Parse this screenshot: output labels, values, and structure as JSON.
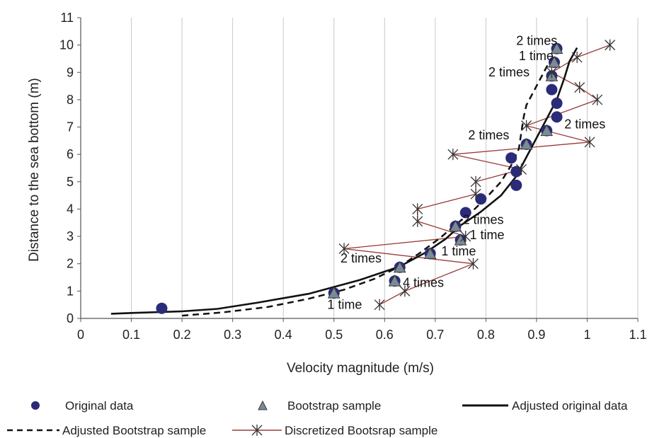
{
  "chart_data": {
    "type": "scatter",
    "title": "",
    "xlabel": "Velocity magnitude (m/s)",
    "ylabel": "Distance to the sea bottom (m)",
    "xlim": [
      0,
      1.1
    ],
    "ylim": [
      0,
      11
    ],
    "xticks": [
      "0",
      "0.1",
      "0.2",
      "0.3",
      "0.4",
      "0.5",
      "0.6",
      "0.7",
      "0.8",
      "0.9",
      "1",
      "1.1"
    ],
    "yticks": [
      "0",
      "1",
      "2",
      "3",
      "4",
      "5",
      "6",
      "7",
      "8",
      "9",
      "10",
      "11"
    ],
    "grid": "vertical",
    "legend_position": "bottom",
    "colors": {
      "original": "#2b2b7a",
      "bootstrap_fill": "#7a8a96",
      "bootstrap_edge": "#3a3a3a",
      "adjusted_original": "#111111",
      "adjusted_bootstrap": "#111111",
      "discretized": "#9a3a3a",
      "grid": "#c8c8c8"
    },
    "series": [
      {
        "name": "Original data",
        "kind": "points",
        "marker": "circle",
        "points": [
          [
            0.16,
            0.37
          ],
          [
            0.5,
            0.93
          ],
          [
            0.62,
            1.37
          ],
          [
            0.63,
            1.87
          ],
          [
            0.69,
            2.37
          ],
          [
            0.75,
            2.87
          ],
          [
            0.74,
            3.37
          ],
          [
            0.76,
            3.87
          ],
          [
            0.79,
            4.37
          ],
          [
            0.86,
            4.87
          ],
          [
            0.86,
            5.37
          ],
          [
            0.85,
            5.87
          ],
          [
            0.88,
            6.37
          ],
          [
            0.92,
            6.87
          ],
          [
            0.94,
            7.37
          ],
          [
            0.94,
            7.87
          ],
          [
            0.93,
            8.37
          ],
          [
            0.93,
            8.87
          ],
          [
            0.935,
            9.37
          ],
          [
            0.94,
            9.87
          ]
        ]
      },
      {
        "name": "Bootstrap sample",
        "kind": "points",
        "marker": "triangle",
        "points": [
          [
            0.5,
            0.93
          ],
          [
            0.62,
            1.37
          ],
          [
            0.63,
            1.87
          ],
          [
            0.69,
            2.37
          ],
          [
            0.75,
            2.87
          ],
          [
            0.74,
            3.37
          ],
          [
            0.88,
            6.37
          ],
          [
            0.92,
            6.87
          ],
          [
            0.93,
            8.87
          ],
          [
            0.935,
            9.37
          ],
          [
            0.94,
            9.87
          ]
        ]
      },
      {
        "name": "Adjusted original data",
        "kind": "line",
        "dash": "solid",
        "points": [
          [
            0.06,
            0.17
          ],
          [
            0.1,
            0.2
          ],
          [
            0.2,
            0.26
          ],
          [
            0.27,
            0.35
          ],
          [
            0.35,
            0.58
          ],
          [
            0.45,
            0.9
          ],
          [
            0.55,
            1.4
          ],
          [
            0.63,
            1.9
          ],
          [
            0.68,
            2.4
          ],
          [
            0.72,
            2.9
          ],
          [
            0.75,
            3.4
          ],
          [
            0.79,
            3.9
          ],
          [
            0.83,
            4.5
          ],
          [
            0.86,
            5.2
          ],
          [
            0.88,
            5.9
          ],
          [
            0.9,
            6.6
          ],
          [
            0.92,
            7.3
          ],
          [
            0.94,
            8.0
          ],
          [
            0.955,
            8.8
          ],
          [
            0.965,
            9.4
          ],
          [
            0.98,
            9.9
          ]
        ]
      },
      {
        "name": "Adjusted Bootstrap sample",
        "kind": "line",
        "dash": "dashed",
        "points": [
          [
            0.2,
            0.1
          ],
          [
            0.28,
            0.22
          ],
          [
            0.37,
            0.42
          ],
          [
            0.45,
            0.72
          ],
          [
            0.52,
            1.05
          ],
          [
            0.58,
            1.45
          ],
          [
            0.63,
            1.9
          ],
          [
            0.67,
            2.4
          ],
          [
            0.71,
            2.95
          ],
          [
            0.745,
            3.5
          ],
          [
            0.775,
            3.95
          ],
          [
            0.8,
            4.4
          ],
          [
            0.83,
            5.0
          ],
          [
            0.85,
            5.6
          ],
          [
            0.865,
            6.2
          ],
          [
            0.87,
            6.8
          ],
          [
            0.875,
            7.4
          ],
          [
            0.88,
            7.8
          ],
          [
            0.9,
            8.5
          ],
          [
            0.92,
            9.2
          ],
          [
            0.94,
            9.8
          ]
        ]
      },
      {
        "name": "Discretized Bootsrap sample",
        "kind": "line-markers",
        "marker": "asterisk",
        "points": [
          [
            0.59,
            0.5
          ],
          [
            0.64,
            1.0
          ],
          [
            0.775,
            2.0
          ],
          [
            0.52,
            2.55
          ],
          [
            0.76,
            3.0
          ],
          [
            0.665,
            3.55
          ],
          [
            0.665,
            4.0
          ],
          [
            0.78,
            4.55
          ],
          [
            0.78,
            5.0
          ],
          [
            0.87,
            5.45
          ],
          [
            0.735,
            6.0
          ],
          [
            1.005,
            6.45
          ],
          [
            0.88,
            7.05
          ],
          [
            1.02,
            8.0
          ],
          [
            0.985,
            8.45
          ],
          [
            0.93,
            9.0
          ],
          [
            0.98,
            9.55
          ],
          [
            1.045,
            10.0
          ]
        ]
      }
    ],
    "annotations": [
      {
        "text": "2 times",
        "x": 0.86,
        "y": 10.0
      },
      {
        "text": "1 time",
        "x": 0.865,
        "y": 9.45
      },
      {
        "text": "2 times",
        "x": 0.805,
        "y": 8.85
      },
      {
        "text": "2 times",
        "x": 0.955,
        "y": 6.95
      },
      {
        "text": "2 times",
        "x": 0.765,
        "y": 6.55
      },
      {
        "text": "2 times",
        "x": 0.754,
        "y": 3.45
      },
      {
        "text": "1 time",
        "x": 0.768,
        "y": 2.9
      },
      {
        "text": "1 time",
        "x": 0.712,
        "y": 2.3
      },
      {
        "text": "2 times",
        "x": 0.513,
        "y": 2.05
      },
      {
        "text": "4 times",
        "x": 0.636,
        "y": 1.15
      },
      {
        "text": "1 time",
        "x": 0.487,
        "y": 0.35
      }
    ]
  }
}
